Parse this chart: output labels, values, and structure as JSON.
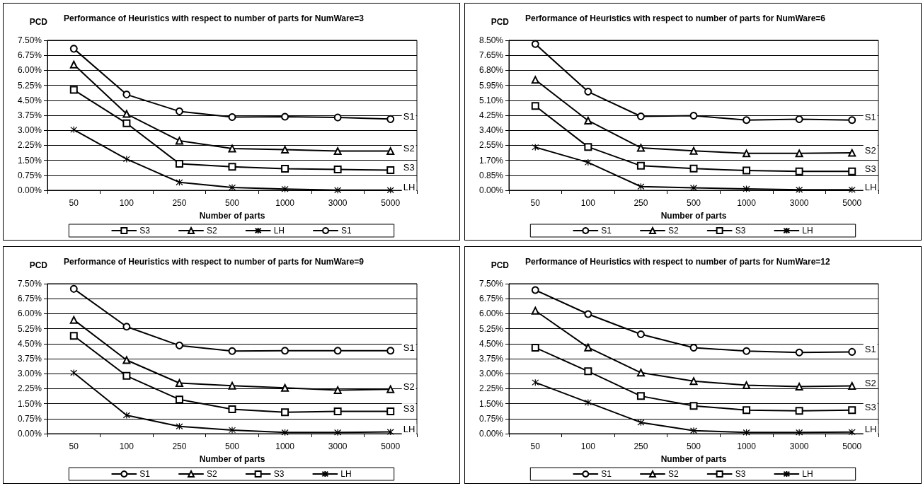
{
  "chart_data": [
    {
      "type": "line",
      "title": "Performance of Heuristics with respect to number of parts for NumWare=3",
      "xlabel": "Number of parts",
      "ylabel": "PCD",
      "categories": [
        "50",
        "100",
        "250",
        "500",
        "1000",
        "3000",
        "5000"
      ],
      "ylim": [
        0,
        7.5
      ],
      "yticks": [
        {
          "value": 0,
          "label": "0.00%"
        },
        {
          "value": 0.75,
          "label": "0.75%"
        },
        {
          "value": 1.5,
          "label": "1.50%"
        },
        {
          "value": 2.25,
          "label": "2.25%"
        },
        {
          "value": 3,
          "label": "3.00%"
        },
        {
          "value": 3.75,
          "label": "3.75%"
        },
        {
          "value": 4.5,
          "label": "4.50%"
        },
        {
          "value": 5.25,
          "label": "5.25%"
        },
        {
          "value": 6,
          "label": "6.00%"
        },
        {
          "value": 6.75,
          "label": "6.75%"
        },
        {
          "value": 7.5,
          "label": "7.50%"
        }
      ],
      "grid": "y",
      "legend": "bottom",
      "series": [
        {
          "name": "S3",
          "color": "#000000",
          "marker": "square",
          "values": [
            5.02,
            3.35,
            1.33,
            1.18,
            1.08,
            1.04,
            1.01
          ]
        },
        {
          "name": "S2",
          "color": "#000000",
          "marker": "triangle",
          "values": [
            6.29,
            3.82,
            2.48,
            2.09,
            2.03,
            1.96,
            1.96
          ]
        },
        {
          "name": "LH",
          "color": "#000000",
          "marker": "cross",
          "values": [
            3.03,
            1.56,
            0.4,
            0.14,
            0.06,
            0.01,
            0.01
          ]
        },
        {
          "name": "S1",
          "color": "#000000",
          "marker": "circle",
          "values": [
            7.08,
            4.79,
            3.95,
            3.66,
            3.68,
            3.64,
            3.56
          ]
        }
      ]
    },
    {
      "type": "line",
      "title": "Performance of Heuristics with respect to number of parts for NumWare=6",
      "xlabel": "Number of parts",
      "ylabel": "PCD",
      "categories": [
        "50",
        "100",
        "250",
        "500",
        "1000",
        "3000",
        "5000"
      ],
      "ylim": [
        0,
        8.5
      ],
      "yticks": [
        {
          "value": 0,
          "label": "0.00%"
        },
        {
          "value": 0.85,
          "label": "0.85%"
        },
        {
          "value": 1.7,
          "label": "1.70%"
        },
        {
          "value": 2.55,
          "label": "2.55%"
        },
        {
          "value": 3.4,
          "label": "3.40%"
        },
        {
          "value": 4.25,
          "label": "4.25%"
        },
        {
          "value": 5.1,
          "label": "5.10%"
        },
        {
          "value": 5.95,
          "label": "5.95%"
        },
        {
          "value": 6.8,
          "label": "6.80%"
        },
        {
          "value": 7.65,
          "label": "7.65%"
        },
        {
          "value": 8.5,
          "label": "8.50%"
        }
      ],
      "grid": "y",
      "legend": "bottom",
      "series": [
        {
          "name": "S1",
          "color": "#000000",
          "marker": "circle",
          "values": [
            8.29,
            5.59,
            4.19,
            4.23,
            3.98,
            4.03,
            3.98
          ]
        },
        {
          "name": "S2",
          "color": "#000000",
          "marker": "triangle",
          "values": [
            6.26,
            3.95,
            2.41,
            2.24,
            2.09,
            2.09,
            2.12
          ]
        },
        {
          "name": "S3",
          "color": "#000000",
          "marker": "square",
          "values": [
            4.78,
            2.46,
            1.39,
            1.23,
            1.12,
            1.07,
            1.07
          ]
        },
        {
          "name": "LH",
          "color": "#000000",
          "marker": "cross",
          "values": [
            2.44,
            1.58,
            0.21,
            0.14,
            0.08,
            0.03,
            0.03
          ]
        }
      ]
    },
    {
      "type": "line",
      "title": "Performance of Heuristics with respect to number of parts for NumWare=9",
      "xlabel": "Number of parts",
      "ylabel": "PCD",
      "categories": [
        "50",
        "100",
        "250",
        "500",
        "1000",
        "3000",
        "5000"
      ],
      "ylim": [
        0,
        7.5
      ],
      "yticks": [
        {
          "value": 0,
          "label": "0.00%"
        },
        {
          "value": 0.75,
          "label": "0.75%"
        },
        {
          "value": 1.5,
          "label": "1.50%"
        },
        {
          "value": 2.25,
          "label": "2.25%"
        },
        {
          "value": 3,
          "label": "3.00%"
        },
        {
          "value": 3.75,
          "label": "3.75%"
        },
        {
          "value": 4.5,
          "label": "4.50%"
        },
        {
          "value": 5.25,
          "label": "5.25%"
        },
        {
          "value": 6,
          "label": "6.00%"
        },
        {
          "value": 6.75,
          "label": "6.75%"
        },
        {
          "value": 7.5,
          "label": "7.50%"
        }
      ],
      "grid": "y",
      "legend": "bottom",
      "series": [
        {
          "name": "S1",
          "color": "#000000",
          "marker": "circle",
          "values": [
            7.24,
            5.35,
            4.41,
            4.13,
            4.15,
            4.15,
            4.15
          ]
        },
        {
          "name": "S2",
          "color": "#000000",
          "marker": "triangle",
          "values": [
            5.69,
            3.68,
            2.53,
            2.4,
            2.29,
            2.18,
            2.22
          ]
        },
        {
          "name": "S3",
          "color": "#000000",
          "marker": "square",
          "values": [
            4.89,
            2.89,
            1.71,
            1.22,
            1.07,
            1.11,
            1.11
          ]
        },
        {
          "name": "LH",
          "color": "#000000",
          "marker": "cross",
          "values": [
            3.04,
            0.92,
            0.36,
            0.18,
            0.06,
            0.06,
            0.09
          ]
        }
      ]
    },
    {
      "type": "line",
      "title": "Performance of Heuristics with respect to number of parts for NumWare=12",
      "xlabel": "Number of parts",
      "ylabel": "PCD",
      "categories": [
        "50",
        "100",
        "250",
        "500",
        "1000",
        "3000",
        "5000"
      ],
      "ylim": [
        0,
        7.5
      ],
      "yticks": [
        {
          "value": 0,
          "label": "0.00%"
        },
        {
          "value": 0.75,
          "label": "0.75%"
        },
        {
          "value": 1.5,
          "label": "1.50%"
        },
        {
          "value": 2.25,
          "label": "2.25%"
        },
        {
          "value": 3,
          "label": "3.00%"
        },
        {
          "value": 3.75,
          "label": "3.75%"
        },
        {
          "value": 4.5,
          "label": "4.50%"
        },
        {
          "value": 5.25,
          "label": "5.25%"
        },
        {
          "value": 6,
          "label": "6.00%"
        },
        {
          "value": 6.75,
          "label": "6.75%"
        },
        {
          "value": 7.5,
          "label": "7.50%"
        }
      ],
      "grid": "y",
      "legend": "bottom",
      "series": [
        {
          "name": "S1",
          "color": "#000000",
          "marker": "circle",
          "values": [
            7.18,
            5.98,
            4.97,
            4.3,
            4.13,
            4.06,
            4.09
          ]
        },
        {
          "name": "S2",
          "color": "#000000",
          "marker": "triangle",
          "values": [
            6.15,
            4.31,
            3.05,
            2.63,
            2.42,
            2.35,
            2.39
          ]
        },
        {
          "name": "S3",
          "color": "#000000",
          "marker": "square",
          "values": [
            4.3,
            3.12,
            1.88,
            1.39,
            1.18,
            1.14,
            1.18
          ]
        },
        {
          "name": "LH",
          "color": "#000000",
          "marker": "cross",
          "values": [
            2.56,
            1.56,
            0.56,
            0.15,
            0.06,
            0.06,
            0.08
          ]
        }
      ]
    }
  ]
}
